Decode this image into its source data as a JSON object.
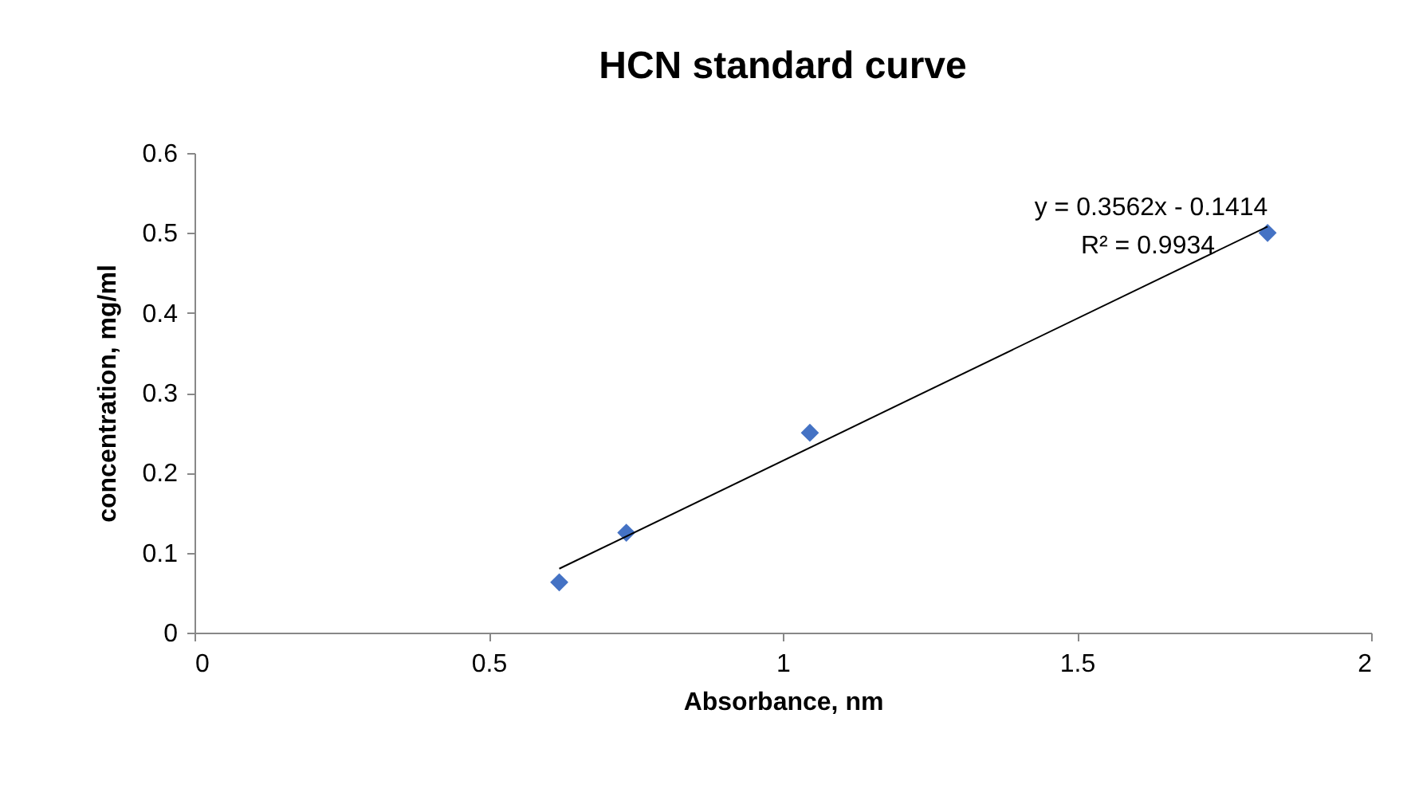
{
  "chart_data": {
    "type": "scatter",
    "title": "HCN standard curve",
    "xlabel": "Absorbance, nm",
    "ylabel": "concentration, mg/ml",
    "xlim": [
      0,
      2
    ],
    "xticks": [
      0,
      0.5,
      1,
      1.5,
      2
    ],
    "ylim": [
      0,
      0.6
    ],
    "yticks": [
      0,
      0.1,
      0.2,
      0.3,
      0.4,
      0.5,
      0.6
    ],
    "grid": false,
    "marker": "diamond",
    "series": [
      {
        "color": "#4472c4",
        "x": [
          0.62,
          0.734,
          1.046,
          1.824
        ],
        "values": [
          0.063,
          0.125,
          0.25,
          0.5
        ]
      },
      {
        "type": "line",
        "color": "#000000",
        "marker": "none",
        "x": [
          0.62,
          1.824
        ],
        "values": [
          0.08,
          0.508
        ]
      }
    ],
    "annotations": [
      "y = 0.3562x - 0.1414",
      "R² = 0.9934"
    ]
  }
}
